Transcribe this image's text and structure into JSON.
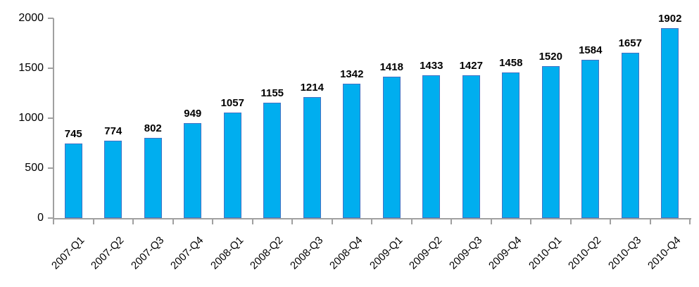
{
  "chart_data": {
    "type": "bar",
    "title": "",
    "xlabel": "",
    "ylabel": "",
    "categories": [
      "2007-Q1",
      "2007-Q2",
      "2007-Q3",
      "2007-Q4",
      "2008-Q1",
      "2008-Q2",
      "2008-Q3",
      "2008-Q4",
      "2009-Q1",
      "2009-Q2",
      "2009-Q3",
      "2009-Q4",
      "2010-Q1",
      "2010-Q2",
      "2010-Q3",
      "2010-Q4"
    ],
    "values": [
      745,
      774,
      802,
      949,
      1057,
      1155,
      1214,
      1342,
      1418,
      1433,
      1427,
      1458,
      1520,
      1584,
      1657,
      1902
    ],
    "data_labels_shown": true,
    "ylim": [
      0,
      2000
    ],
    "yticks": [
      0,
      500,
      1000,
      1500,
      2000
    ],
    "grid": false,
    "legend": null,
    "x_tick_rotation_deg": 45,
    "colors": {
      "bar_fill": "#00AEEF",
      "bar_border": "#4472C4",
      "axis_line": "#A0A0A0",
      "text": "#000000"
    }
  }
}
